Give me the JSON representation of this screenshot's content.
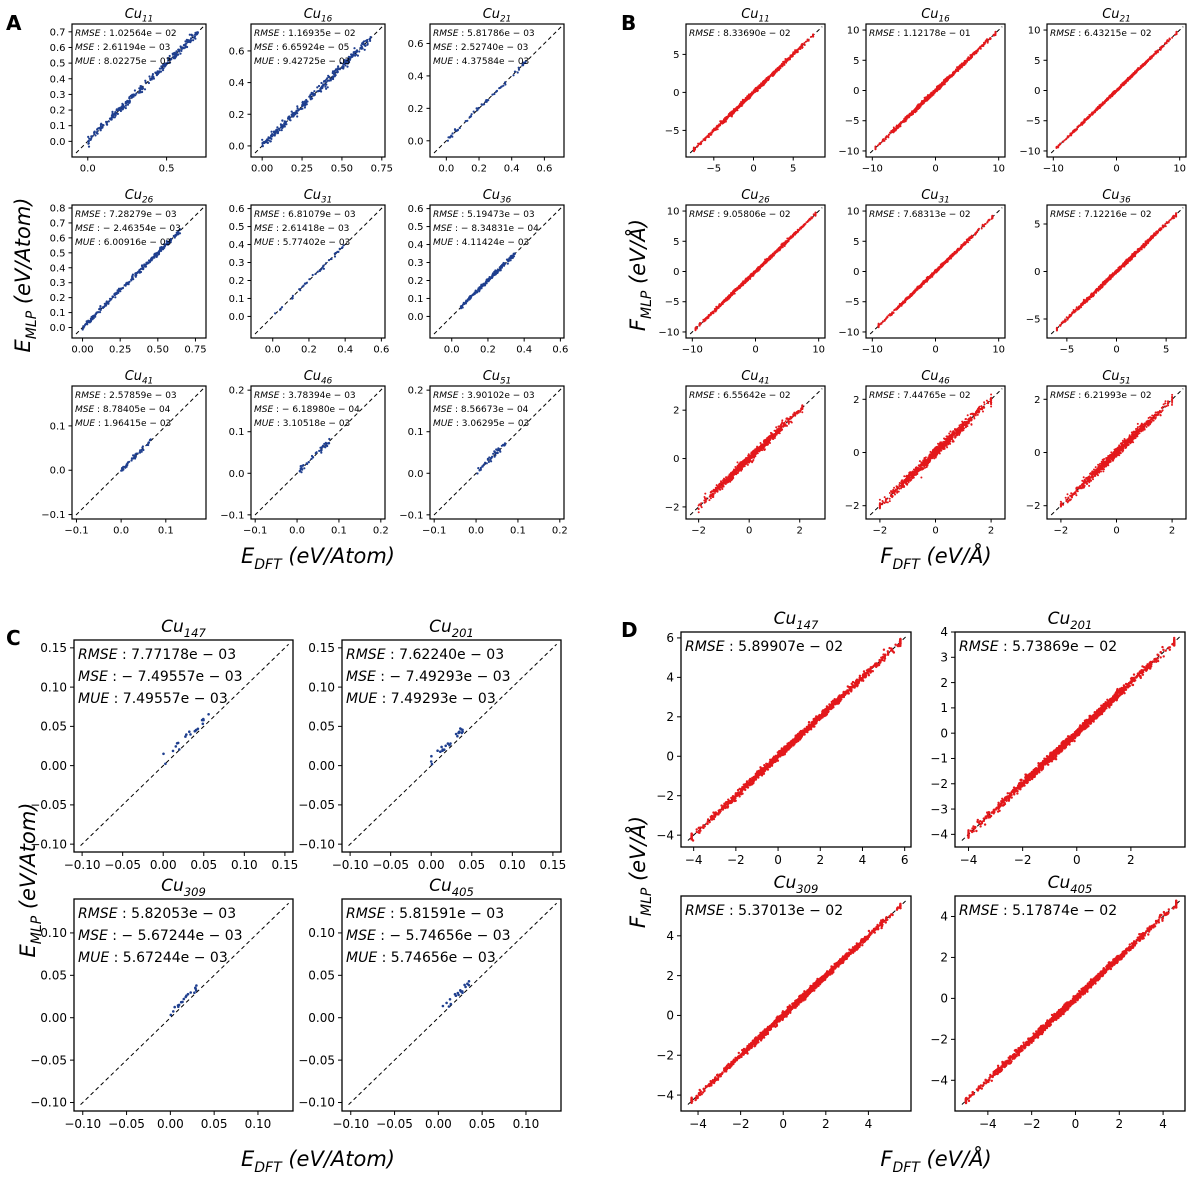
{
  "figure": {
    "panels": [
      {
        "letter": "A",
        "xlabel_sym": "E",
        "xlabel_sub": "DFT",
        "xlabel_unit": "(eV/Atom)",
        "ylabel_sym": "E",
        "ylabel_sub": "MLP",
        "ylabel_unit": "(eV/Atom)"
      },
      {
        "letter": "B",
        "xlabel_sym": "F",
        "xlabel_sub": "DFT",
        "xlabel_unit": "(eV/Å)",
        "ylabel_sym": "F",
        "ylabel_sub": "MLP",
        "ylabel_unit": "(eV/Å)"
      },
      {
        "letter": "C",
        "xlabel_sym": "E",
        "xlabel_sub": "DFT",
        "xlabel_unit": "(eV/Atom)",
        "ylabel_sym": "E",
        "ylabel_sub": "MLP",
        "ylabel_unit": "(eV/Atom)"
      },
      {
        "letter": "D",
        "xlabel_sym": "F",
        "xlabel_sub": "DFT",
        "xlabel_unit": "(eV/Å)",
        "ylabel_sym": "F",
        "ylabel_sub": "MLP",
        "ylabel_unit": "(eV/Å)"
      }
    ],
    "colors": {
      "energy_points": "#1f3f8f",
      "force_points": "#e3191c",
      "diagonal": "#000000"
    }
  },
  "chart_data": [
    {
      "panel": "A",
      "type": "scatter",
      "title": "Cu",
      "title_sub": "11",
      "xlim": [
        -0.1,
        0.75
      ],
      "ylim": [
        -0.1,
        0.75
      ],
      "xticks": [
        "0.0",
        "0.5"
      ],
      "yticks": [
        "0.0",
        "0.1",
        "0.2",
        "0.3",
        "0.4",
        "0.5",
        "0.6",
        "0.7"
      ],
      "stats": [
        {
          "label": "RMSE",
          "value": "1.02564e − 02"
        },
        {
          "label": "MSE",
          "value": "2.61194e − 03"
        },
        {
          "label": "MUE",
          "value": "8.02275e − 03"
        }
      ],
      "data_range": [
        0.0,
        0.7
      ],
      "n_points": 260,
      "spread": 0.012
    },
    {
      "panel": "A",
      "type": "scatter",
      "title": "Cu",
      "title_sub": "16",
      "xlim": [
        -0.07,
        0.77
      ],
      "ylim": [
        -0.07,
        0.77
      ],
      "xticks": [
        "0.00",
        "0.25",
        "0.50",
        "0.75"
      ],
      "yticks": [
        "0.0",
        "0.2",
        "0.4",
        "0.6"
      ],
      "stats": [
        {
          "label": "RMSE",
          "value": "1.16935e − 02"
        },
        {
          "label": "MSE",
          "value": "6.65924e − 05"
        },
        {
          "label": "MUE",
          "value": "9.42725e − 03"
        }
      ],
      "data_range": [
        0.0,
        0.68
      ],
      "n_points": 280,
      "spread": 0.014
    },
    {
      "panel": "A",
      "type": "scatter",
      "title": "Cu",
      "title_sub": "21",
      "xlim": [
        -0.1,
        0.72
      ],
      "ylim": [
        -0.1,
        0.72
      ],
      "xticks": [
        "0.0",
        "0.2",
        "0.4",
        "0.6"
      ],
      "yticks": [
        "0.0",
        "0.2",
        "0.4",
        "0.6"
      ],
      "stats": [
        {
          "label": "RMSE",
          "value": "5.81786e − 03"
        },
        {
          "label": "MSE",
          "value": "2.52740e − 03"
        },
        {
          "label": "MUE",
          "value": "4.37584e − 03"
        }
      ],
      "data_range": [
        0.0,
        0.5
      ],
      "n_points": 60,
      "spread": 0.006
    },
    {
      "panel": "A",
      "type": "scatter",
      "title": "Cu",
      "title_sub": "26",
      "xlim": [
        -0.07,
        0.82
      ],
      "ylim": [
        -0.07,
        0.82
      ],
      "xticks": [
        "0.00",
        "0.25",
        "0.50",
        "0.75"
      ],
      "yticks": [
        "0.0",
        "0.1",
        "0.2",
        "0.3",
        "0.4",
        "0.5",
        "0.6",
        "0.7",
        "0.8"
      ],
      "stats": [
        {
          "label": "RMSE",
          "value": "7.28279e − 03"
        },
        {
          "label": "MSE",
          "value": "− 2.46354e − 03"
        },
        {
          "label": "MUE",
          "value": "6.00916e − 03"
        }
      ],
      "data_range": [
        0.0,
        0.65
      ],
      "n_points": 240,
      "spread": 0.008
    },
    {
      "panel": "A",
      "type": "scatter",
      "title": "Cu",
      "title_sub": "31",
      "xlim": [
        -0.12,
        0.62
      ],
      "ylim": [
        -0.12,
        0.62
      ],
      "xticks": [
        "0.0",
        "0.2",
        "0.4",
        "0.6"
      ],
      "yticks": [
        "0.0",
        "0.1",
        "0.2",
        "0.3",
        "0.4",
        "0.5",
        "0.6"
      ],
      "stats": [
        {
          "label": "RMSE",
          "value": "6.81079e − 03"
        },
        {
          "label": "MSE",
          "value": "2.61418e − 03"
        },
        {
          "label": "MUE",
          "value": "5.77402e − 03"
        }
      ],
      "data_range": [
        0.0,
        0.4
      ],
      "n_points": 40,
      "spread": 0.006
    },
    {
      "panel": "A",
      "type": "scatter",
      "title": "Cu",
      "title_sub": "36",
      "xlim": [
        -0.12,
        0.62
      ],
      "ylim": [
        -0.12,
        0.62
      ],
      "xticks": [
        "0.0",
        "0.2",
        "0.4",
        "0.6"
      ],
      "yticks": [
        "0.0",
        "0.1",
        "0.2",
        "0.3",
        "0.4",
        "0.5",
        "0.6"
      ],
      "stats": [
        {
          "label": "RMSE",
          "value": "5.19473e − 03"
        },
        {
          "label": "MSE",
          "value": "− 8.34831e − 04"
        },
        {
          "label": "MUE",
          "value": "4.11424e − 03"
        }
      ],
      "data_range": [
        0.05,
        0.35
      ],
      "n_points": 180,
      "spread": 0.006
    },
    {
      "panel": "A",
      "type": "scatter",
      "title": "Cu",
      "title_sub": "41",
      "xlim": [
        -0.11,
        0.19
      ],
      "ylim": [
        -0.11,
        0.19
      ],
      "xticks": [
        "−0.1",
        "0.0",
        "0.1"
      ],
      "yticks": [
        "−0.1",
        "0.0",
        "0.1"
      ],
      "stats": [
        {
          "label": "RMSE",
          "value": "2.57859e − 03"
        },
        {
          "label": "MSE",
          "value": "8.78405e − 04"
        },
        {
          "label": "MUE",
          "value": "1.96415e − 03"
        }
      ],
      "data_range": [
        0.0,
        0.07
      ],
      "n_points": 45,
      "spread": 0.003
    },
    {
      "panel": "A",
      "type": "scatter",
      "title": "Cu",
      "title_sub": "46",
      "xlim": [
        -0.11,
        0.21
      ],
      "ylim": [
        -0.11,
        0.21
      ],
      "xticks": [
        "−0.1",
        "0.0",
        "0.1",
        "0.2"
      ],
      "yticks": [
        "−0.1",
        "0.0",
        "0.1",
        "0.2"
      ],
      "stats": [
        {
          "label": "RMSE",
          "value": "3.78394e − 03"
        },
        {
          "label": "MSE",
          "value": "− 6.18980e − 04"
        },
        {
          "label": "MUE",
          "value": "3.10518e − 03"
        }
      ],
      "data_range": [
        0.0,
        0.08
      ],
      "n_points": 45,
      "spread": 0.004
    },
    {
      "panel": "A",
      "type": "scatter",
      "title": "Cu",
      "title_sub": "51",
      "xlim": [
        -0.11,
        0.21
      ],
      "ylim": [
        -0.11,
        0.21
      ],
      "xticks": [
        "−0.1",
        "0.0",
        "0.1",
        "0.2"
      ],
      "yticks": [
        "−0.1",
        "0.0",
        "0.1",
        "0.2"
      ],
      "stats": [
        {
          "label": "RMSE",
          "value": "3.90102e − 03"
        },
        {
          "label": "MSE",
          "value": "8.56673e − 04"
        },
        {
          "label": "MUE",
          "value": "3.06295e − 03"
        }
      ],
      "data_range": [
        0.0,
        0.07
      ],
      "n_points": 45,
      "spread": 0.004
    },
    {
      "panel": "B",
      "type": "scatter",
      "title": "Cu",
      "title_sub": "11",
      "xlim": [
        -8.5,
        9
      ],
      "ylim": [
        -8.5,
        9
      ],
      "xticks": [
        "−5",
        "0",
        "5"
      ],
      "yticks": [
        "−5",
        "0",
        "5"
      ],
      "stats": [
        {
          "label": "RMSE",
          "value": "8.33690e − 02"
        }
      ],
      "data_range": [
        -7.5,
        7.5
      ],
      "n_points": 900,
      "spread": 0.12
    },
    {
      "panel": "B",
      "type": "scatter",
      "title": "Cu",
      "title_sub": "16",
      "xlim": [
        -11,
        11
      ],
      "ylim": [
        -11,
        11
      ],
      "xticks": [
        "−10",
        "0",
        "10"
      ],
      "yticks": [
        "−10",
        "−5",
        "0",
        "5",
        "10"
      ],
      "stats": [
        {
          "label": "RMSE",
          "value": "1.12178e − 01"
        }
      ],
      "data_range": [
        -9.5,
        9.5
      ],
      "n_points": 900,
      "spread": 0.16
    },
    {
      "panel": "B",
      "type": "scatter",
      "title": "Cu",
      "title_sub": "21",
      "xlim": [
        -11,
        11
      ],
      "ylim": [
        -11,
        11
      ],
      "xticks": [
        "−10",
        "0",
        "10"
      ],
      "yticks": [
        "−10",
        "−5",
        "0",
        "5",
        "10"
      ],
      "stats": [
        {
          "label": "RMSE",
          "value": "6.43215e − 02"
        }
      ],
      "data_range": [
        -9.5,
        9.5
      ],
      "n_points": 700,
      "spread": 0.1
    },
    {
      "panel": "B",
      "type": "scatter",
      "title": "Cu",
      "title_sub": "26",
      "xlim": [
        -11,
        11
      ],
      "ylim": [
        -11,
        11
      ],
      "xticks": [
        "−10",
        "0",
        "10"
      ],
      "yticks": [
        "−10",
        "−5",
        "0",
        "5",
        "10"
      ],
      "stats": [
        {
          "label": "RMSE",
          "value": "9.05806e − 02"
        }
      ],
      "data_range": [
        -9.5,
        9.5
      ],
      "n_points": 900,
      "spread": 0.13
    },
    {
      "panel": "B",
      "type": "scatter",
      "title": "Cu",
      "title_sub": "31",
      "xlim": [
        -11,
        11
      ],
      "ylim": [
        -11,
        11
      ],
      "xticks": [
        "−10",
        "0",
        "10"
      ],
      "yticks": [
        "−10",
        "−5",
        "0",
        "5",
        "10"
      ],
      "stats": [
        {
          "label": "RMSE",
          "value": "7.68313e − 02"
        }
      ],
      "data_range": [
        -9,
        9
      ],
      "n_points": 700,
      "spread": 0.12
    },
    {
      "panel": "B",
      "type": "scatter",
      "title": "Cu",
      "title_sub": "36",
      "xlim": [
        -7,
        7
      ],
      "ylim": [
        -7,
        7
      ],
      "xticks": [
        "−5",
        "0",
        "5"
      ],
      "yticks": [
        "−5",
        "0",
        "5"
      ],
      "stats": [
        {
          "label": "RMSE",
          "value": "7.12216e − 02"
        }
      ],
      "data_range": [
        -6,
        6
      ],
      "n_points": 800,
      "spread": 0.1
    },
    {
      "panel": "B",
      "type": "scatter",
      "title": "Cu",
      "title_sub": "41",
      "xlim": [
        -2.5,
        3
      ],
      "ylim": [
        -2.5,
        3
      ],
      "xticks": [
        "−2",
        "0",
        "2"
      ],
      "yticks": [
        "−2",
        "0",
        "2"
      ],
      "stats": [
        {
          "label": "RMSE",
          "value": "6.55642e − 02"
        }
      ],
      "data_range": [
        -2.0,
        2.1
      ],
      "n_points": 900,
      "spread": 0.08
    },
    {
      "panel": "B",
      "type": "scatter",
      "title": "Cu",
      "title_sub": "46",
      "xlim": [
        -2.5,
        2.5
      ],
      "ylim": [
        -2.5,
        2.5
      ],
      "xticks": [
        "−2",
        "0",
        "2"
      ],
      "yticks": [
        "−2",
        "0",
        "2"
      ],
      "stats": [
        {
          "label": "RMSE",
          "value": "7.44765e − 02"
        }
      ],
      "data_range": [
        -2.0,
        2.0
      ],
      "n_points": 900,
      "spread": 0.09
    },
    {
      "panel": "B",
      "type": "scatter",
      "title": "Cu",
      "title_sub": "51",
      "xlim": [
        -2.5,
        2.5
      ],
      "ylim": [
        -2.5,
        2.5
      ],
      "xticks": [
        "−2",
        "0",
        "2"
      ],
      "yticks": [
        "−2",
        "0",
        "2"
      ],
      "stats": [
        {
          "label": "RMSE",
          "value": "6.21993e − 02"
        }
      ],
      "data_range": [
        -2.0,
        2.0
      ],
      "n_points": 900,
      "spread": 0.08
    },
    {
      "panel": "C",
      "type": "scatter",
      "title": "Cu",
      "title_sub": "147",
      "xlim": [
        -0.11,
        0.16
      ],
      "ylim": [
        -0.11,
        0.16
      ],
      "xticks": [
        "−0.10",
        "−0.05",
        "0.00",
        "0.05",
        "0.10",
        "0.15"
      ],
      "yticks": [
        "−0.10",
        "−0.05",
        "0.00",
        "0.05",
        "0.10",
        "0.15"
      ],
      "stats": [
        {
          "label": "RMSE",
          "value": "7.77178e − 03"
        },
        {
          "label": "MSE",
          "value": "− 7.49557e − 03"
        },
        {
          "label": "MUE",
          "value": "7.49557e − 03"
        }
      ],
      "data_range": [
        0.0,
        0.06
      ],
      "n_points": 20,
      "spread": 0.003,
      "offset": 0.0075
    },
    {
      "panel": "C",
      "type": "scatter",
      "title": "Cu",
      "title_sub": "201",
      "xlim": [
        -0.11,
        0.16
      ],
      "ylim": [
        -0.11,
        0.16
      ],
      "xticks": [
        "−0.10",
        "−0.05",
        "0.00",
        "0.05",
        "0.10",
        "0.15"
      ],
      "yticks": [
        "−0.10",
        "−0.05",
        "0.00",
        "0.05",
        "0.10",
        "0.15"
      ],
      "stats": [
        {
          "label": "RMSE",
          "value": "7.62240e − 03"
        },
        {
          "label": "MSE",
          "value": "− 7.49293e − 03"
        },
        {
          "label": "MUE",
          "value": "7.49293e − 03"
        }
      ],
      "data_range": [
        0.0,
        0.04
      ],
      "n_points": 24,
      "spread": 0.003,
      "offset": 0.0075
    },
    {
      "panel": "C",
      "type": "scatter",
      "title": "Cu",
      "title_sub": "309",
      "xlim": [
        -0.11,
        0.14
      ],
      "ylim": [
        -0.11,
        0.14
      ],
      "xticks": [
        "−0.10",
        "−0.05",
        "0.00",
        "0.05",
        "0.10"
      ],
      "yticks": [
        "−0.10",
        "−0.05",
        "0.00",
        "0.05",
        "0.10"
      ],
      "stats": [
        {
          "label": "RMSE",
          "value": "5.82053e − 03"
        },
        {
          "label": "MSE",
          "value": "− 5.67244e − 03"
        },
        {
          "label": "MUE",
          "value": "5.67244e − 03"
        }
      ],
      "data_range": [
        0.0,
        0.03
      ],
      "n_points": 18,
      "spread": 0.002,
      "offset": 0.0057
    },
    {
      "panel": "C",
      "type": "scatter",
      "title": "Cu",
      "title_sub": "405",
      "xlim": [
        -0.11,
        0.14
      ],
      "ylim": [
        -0.11,
        0.14
      ],
      "xticks": [
        "−0.10",
        "−0.05",
        "0.00",
        "0.05",
        "0.10"
      ],
      "yticks": [
        "−0.10",
        "−0.05",
        "0.00",
        "0.05",
        "0.10"
      ],
      "stats": [
        {
          "label": "RMSE",
          "value": "5.81591e − 03"
        },
        {
          "label": "MSE",
          "value": "− 5.74656e − 03"
        },
        {
          "label": "MUE",
          "value": "5.74656e − 03"
        }
      ],
      "data_range": [
        0.005,
        0.035
      ],
      "n_points": 18,
      "spread": 0.002,
      "offset": 0.0057
    },
    {
      "panel": "D",
      "type": "scatter",
      "title": "Cu",
      "title_sub": "147",
      "xlim": [
        -4.6,
        6.3
      ],
      "ylim": [
        -4.6,
        6.3
      ],
      "xticks": [
        "−4",
        "−2",
        "0",
        "2",
        "4",
        "6"
      ],
      "yticks": [
        "−4",
        "−2",
        "0",
        "2",
        "4",
        "6"
      ],
      "stats": [
        {
          "label": "RMSE",
          "value": "5.89907e − 02"
        }
      ],
      "data_range": [
        -4.1,
        5.8
      ],
      "n_points": 1200,
      "spread": 0.09
    },
    {
      "panel": "D",
      "type": "scatter",
      "title": "Cu",
      "title_sub": "201",
      "xlim": [
        -4.5,
        4.0
      ],
      "ylim": [
        -4.5,
        4.0
      ],
      "xticks": [
        "−4",
        "−2",
        "0",
        "2"
      ],
      "yticks": [
        "−4",
        "−3",
        "−2",
        "−1",
        "0",
        "1",
        "2",
        "3",
        "4"
      ],
      "stats": [
        {
          "label": "RMSE",
          "value": "5.73869e − 02"
        }
      ],
      "data_range": [
        -4.0,
        3.6
      ],
      "n_points": 1400,
      "spread": 0.08
    },
    {
      "panel": "D",
      "type": "scatter",
      "title": "Cu",
      "title_sub": "309",
      "xlim": [
        -4.8,
        6.0
      ],
      "ylim": [
        -4.8,
        6.0
      ],
      "xticks": [
        "−4",
        "−2",
        "0",
        "2",
        "4"
      ],
      "yticks": [
        "−4",
        "−2",
        "0",
        "2",
        "4"
      ],
      "stats": [
        {
          "label": "RMSE",
          "value": "5.37013e − 02"
        }
      ],
      "data_range": [
        -4.3,
        5.5
      ],
      "n_points": 1400,
      "spread": 0.08
    },
    {
      "panel": "D",
      "type": "scatter",
      "title": "Cu",
      "title_sub": "405",
      "xlim": [
        -5.5,
        5.0
      ],
      "ylim": [
        -5.5,
        5.0
      ],
      "xticks": [
        "−4",
        "−2",
        "0",
        "2",
        "4"
      ],
      "yticks": [
        "−4",
        "−2",
        "0",
        "2",
        "4"
      ],
      "stats": [
        {
          "label": "RMSE",
          "value": "5.17874e − 02"
        }
      ],
      "data_range": [
        -5.0,
        4.6
      ],
      "n_points": 1400,
      "spread": 0.08
    }
  ]
}
